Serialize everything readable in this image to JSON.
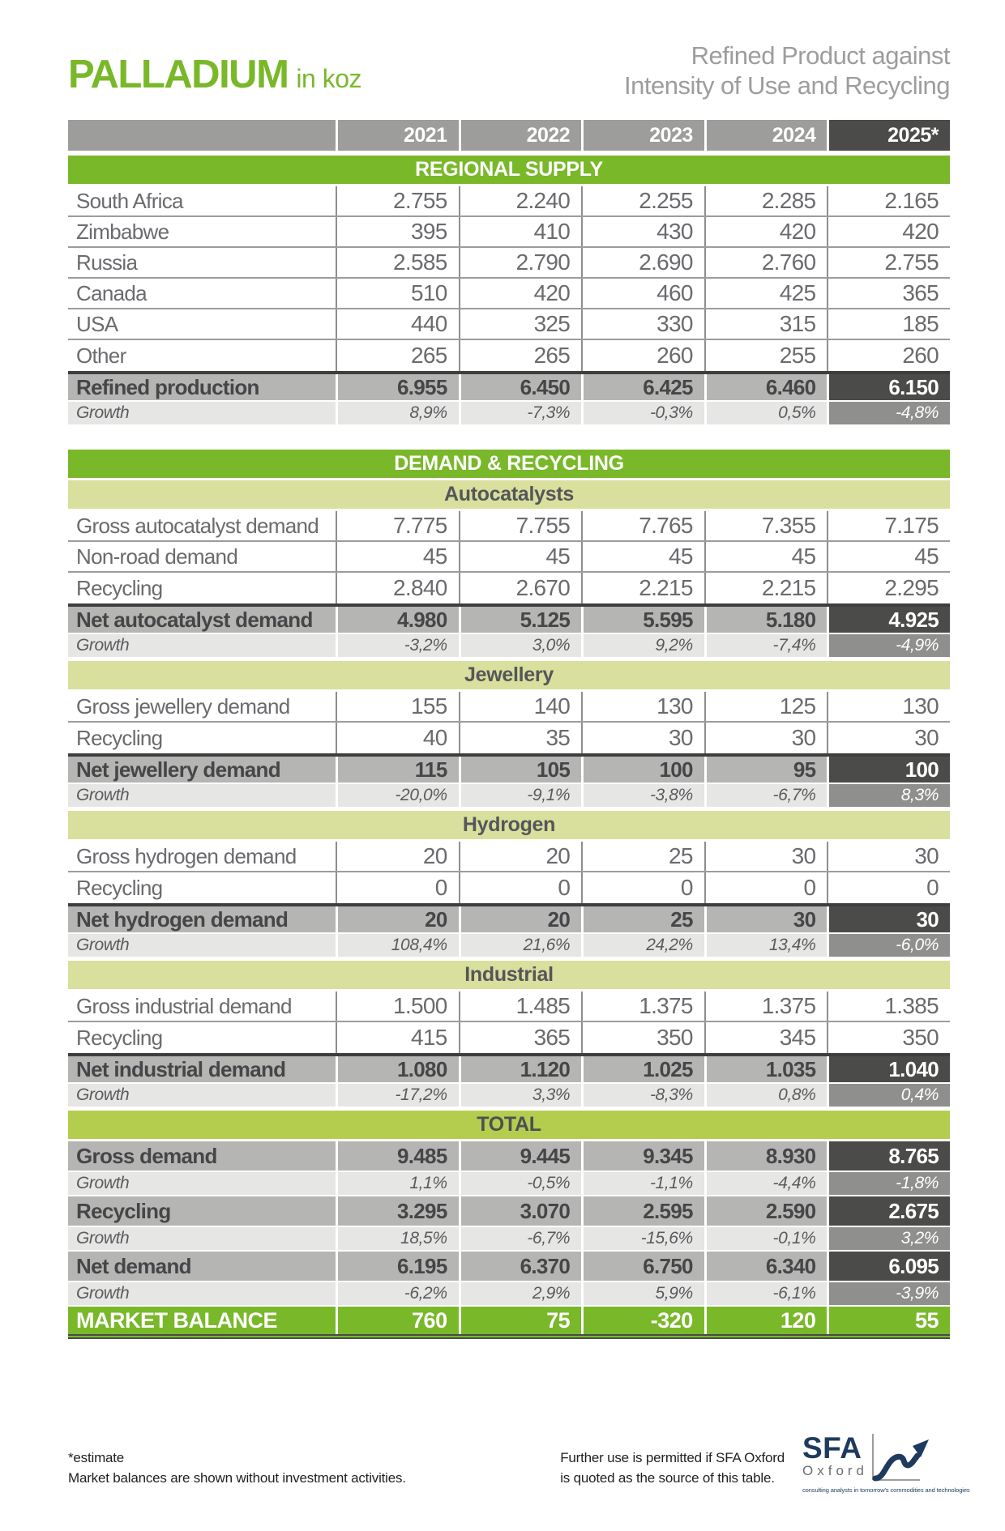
{
  "header": {
    "title": "PALLADIUM",
    "unit": "in koz",
    "subtitle_line1": "Refined Product against",
    "subtitle_line2": "Intensity of Use and Recycling"
  },
  "colors": {
    "green": "#79B829",
    "paleGreen": "#D9DF9C",
    "totalGreen": "#B5CD4E",
    "headerGray": "#9D9D9C",
    "darkCell": "#4B4B4A",
    "subtotalBg": "#B5B5B4",
    "growthBg": "#E6E6E5",
    "growthDark": "#8F8F8E",
    "navy": "#1E3A5F"
  },
  "table": {
    "columns": [
      "2021",
      "2022",
      "2023",
      "2024",
      "2025*"
    ],
    "rows": [
      {
        "type": "section",
        "label": "REGIONAL SUPPLY"
      },
      {
        "type": "data",
        "label": "South Africa",
        "values": [
          "2.755",
          "2.240",
          "2.255",
          "2.285",
          "2.165"
        ]
      },
      {
        "type": "data",
        "label": "Zimbabwe",
        "values": [
          "395",
          "410",
          "430",
          "420",
          "420"
        ]
      },
      {
        "type": "data",
        "label": "Russia",
        "values": [
          "2.585",
          "2.790",
          "2.690",
          "2.760",
          "2.755"
        ]
      },
      {
        "type": "data",
        "label": "Canada",
        "values": [
          "510",
          "420",
          "460",
          "425",
          "365"
        ]
      },
      {
        "type": "data",
        "label": "USA",
        "values": [
          "440",
          "325",
          "330",
          "315",
          "185"
        ]
      },
      {
        "type": "data",
        "label": "Other",
        "values": [
          "265",
          "265",
          "260",
          "255",
          "260"
        ]
      },
      {
        "type": "subtotal",
        "label": "Refined production",
        "dark_top": true,
        "values": [
          "6.955",
          "6.450",
          "6.425",
          "6.460",
          "6.150"
        ]
      },
      {
        "type": "growth",
        "label": "Growth",
        "values": [
          "8,9%",
          "-7,3%",
          "-0,3%",
          "0,5%",
          "-4,8%"
        ]
      },
      {
        "type": "gap"
      },
      {
        "type": "section",
        "label": "DEMAND & RECYCLING"
      },
      {
        "type": "subsection",
        "label": "Autocatalysts"
      },
      {
        "type": "data",
        "label": "Gross autocatalyst demand",
        "values": [
          "7.775",
          "7.755",
          "7.765",
          "7.355",
          "7.175"
        ]
      },
      {
        "type": "data",
        "label": "Non-road demand",
        "values": [
          "45",
          "45",
          "45",
          "45",
          "45"
        ]
      },
      {
        "type": "data",
        "label": "Recycling",
        "values": [
          "2.840",
          "2.670",
          "2.215",
          "2.215",
          "2.295"
        ]
      },
      {
        "type": "subtotal",
        "label": "Net autocatalyst demand",
        "dark_top": true,
        "values": [
          "4.980",
          "5.125",
          "5.595",
          "5.180",
          "4.925"
        ]
      },
      {
        "type": "growth",
        "label": "Growth",
        "values": [
          "-3,2%",
          "3,0%",
          "9,2%",
          "-7,4%",
          "-4,9%"
        ]
      },
      {
        "type": "subsection",
        "label": "Jewellery"
      },
      {
        "type": "data",
        "label": "Gross jewellery demand",
        "values": [
          "155",
          "140",
          "130",
          "125",
          "130"
        ]
      },
      {
        "type": "data",
        "label": "Recycling",
        "values": [
          "40",
          "35",
          "30",
          "30",
          "30"
        ]
      },
      {
        "type": "subtotal",
        "label": "Net jewellery demand",
        "dark_top": true,
        "values": [
          "115",
          "105",
          "100",
          "95",
          "100"
        ]
      },
      {
        "type": "growth",
        "label": "Growth",
        "values": [
          "-20,0%",
          "-9,1%",
          "-3,8%",
          "-6,7%",
          "8,3%"
        ]
      },
      {
        "type": "subsection",
        "label": "Hydrogen"
      },
      {
        "type": "data",
        "label": "Gross hydrogen demand",
        "values": [
          "20",
          "20",
          "25",
          "30",
          "30"
        ]
      },
      {
        "type": "data",
        "label": "Recycling",
        "values": [
          "0",
          "0",
          "0",
          "0",
          "0"
        ]
      },
      {
        "type": "subtotal",
        "label": "Net hydrogen demand",
        "dark_top": true,
        "values": [
          "20",
          "20",
          "25",
          "30",
          "30"
        ]
      },
      {
        "type": "growth",
        "label": "Growth",
        "values": [
          "108,4%",
          "21,6%",
          "24,2%",
          "13,4%",
          "-6,0%"
        ]
      },
      {
        "type": "subsection",
        "label": "Industrial"
      },
      {
        "type": "data",
        "label": "Gross industrial demand",
        "values": [
          "1.500",
          "1.485",
          "1.375",
          "1.375",
          "1.385"
        ]
      },
      {
        "type": "data",
        "label": "Recycling",
        "values": [
          "415",
          "365",
          "350",
          "345",
          "350"
        ]
      },
      {
        "type": "subtotal",
        "label": "Net industrial demand",
        "dark_top": true,
        "values": [
          "1.080",
          "1.120",
          "1.025",
          "1.035",
          "1.040"
        ]
      },
      {
        "type": "growth",
        "label": "Growth",
        "values": [
          "-17,2%",
          "3,3%",
          "-8,3%",
          "0,8%",
          "0,4%"
        ]
      },
      {
        "type": "total_section",
        "label": "TOTAL"
      },
      {
        "type": "subtotal",
        "label": "Gross demand",
        "values": [
          "9.485",
          "9.445",
          "9.345",
          "8.930",
          "8.765"
        ]
      },
      {
        "type": "growth",
        "label": "Growth",
        "values": [
          "1,1%",
          "-0,5%",
          "-1,1%",
          "-4,4%",
          "-1,8%"
        ]
      },
      {
        "type": "subtotal",
        "label": "Recycling",
        "values": [
          "3.295",
          "3.070",
          "2.595",
          "2.590",
          "2.675"
        ]
      },
      {
        "type": "growth",
        "label": "Growth",
        "values": [
          "18,5%",
          "-6,7%",
          "-15,6%",
          "-0,1%",
          "3,2%"
        ]
      },
      {
        "type": "subtotal",
        "label": "Net demand",
        "values": [
          "6.195",
          "6.370",
          "6.750",
          "6.340",
          "6.095"
        ]
      },
      {
        "type": "growth",
        "label": "Growth",
        "values": [
          "-6,2%",
          "2,9%",
          "5,9%",
          "-6,1%",
          "-3,9%"
        ]
      },
      {
        "type": "balance",
        "label": "MARKET BALANCE",
        "values": [
          "760",
          "75",
          "-320",
          "120",
          "55"
        ]
      }
    ]
  },
  "footer": {
    "estimate_note": "*estimate",
    "balance_note": "Market balances are shown without investment activities.",
    "permission_line1": "Further use is permitted if SFA Oxford",
    "permission_line2": "is quoted as the source of this table."
  },
  "logo": {
    "name": "SFA",
    "sub": "Oxford",
    "tagline": "consulting analysts in tomorrow's commodities and technologies"
  }
}
